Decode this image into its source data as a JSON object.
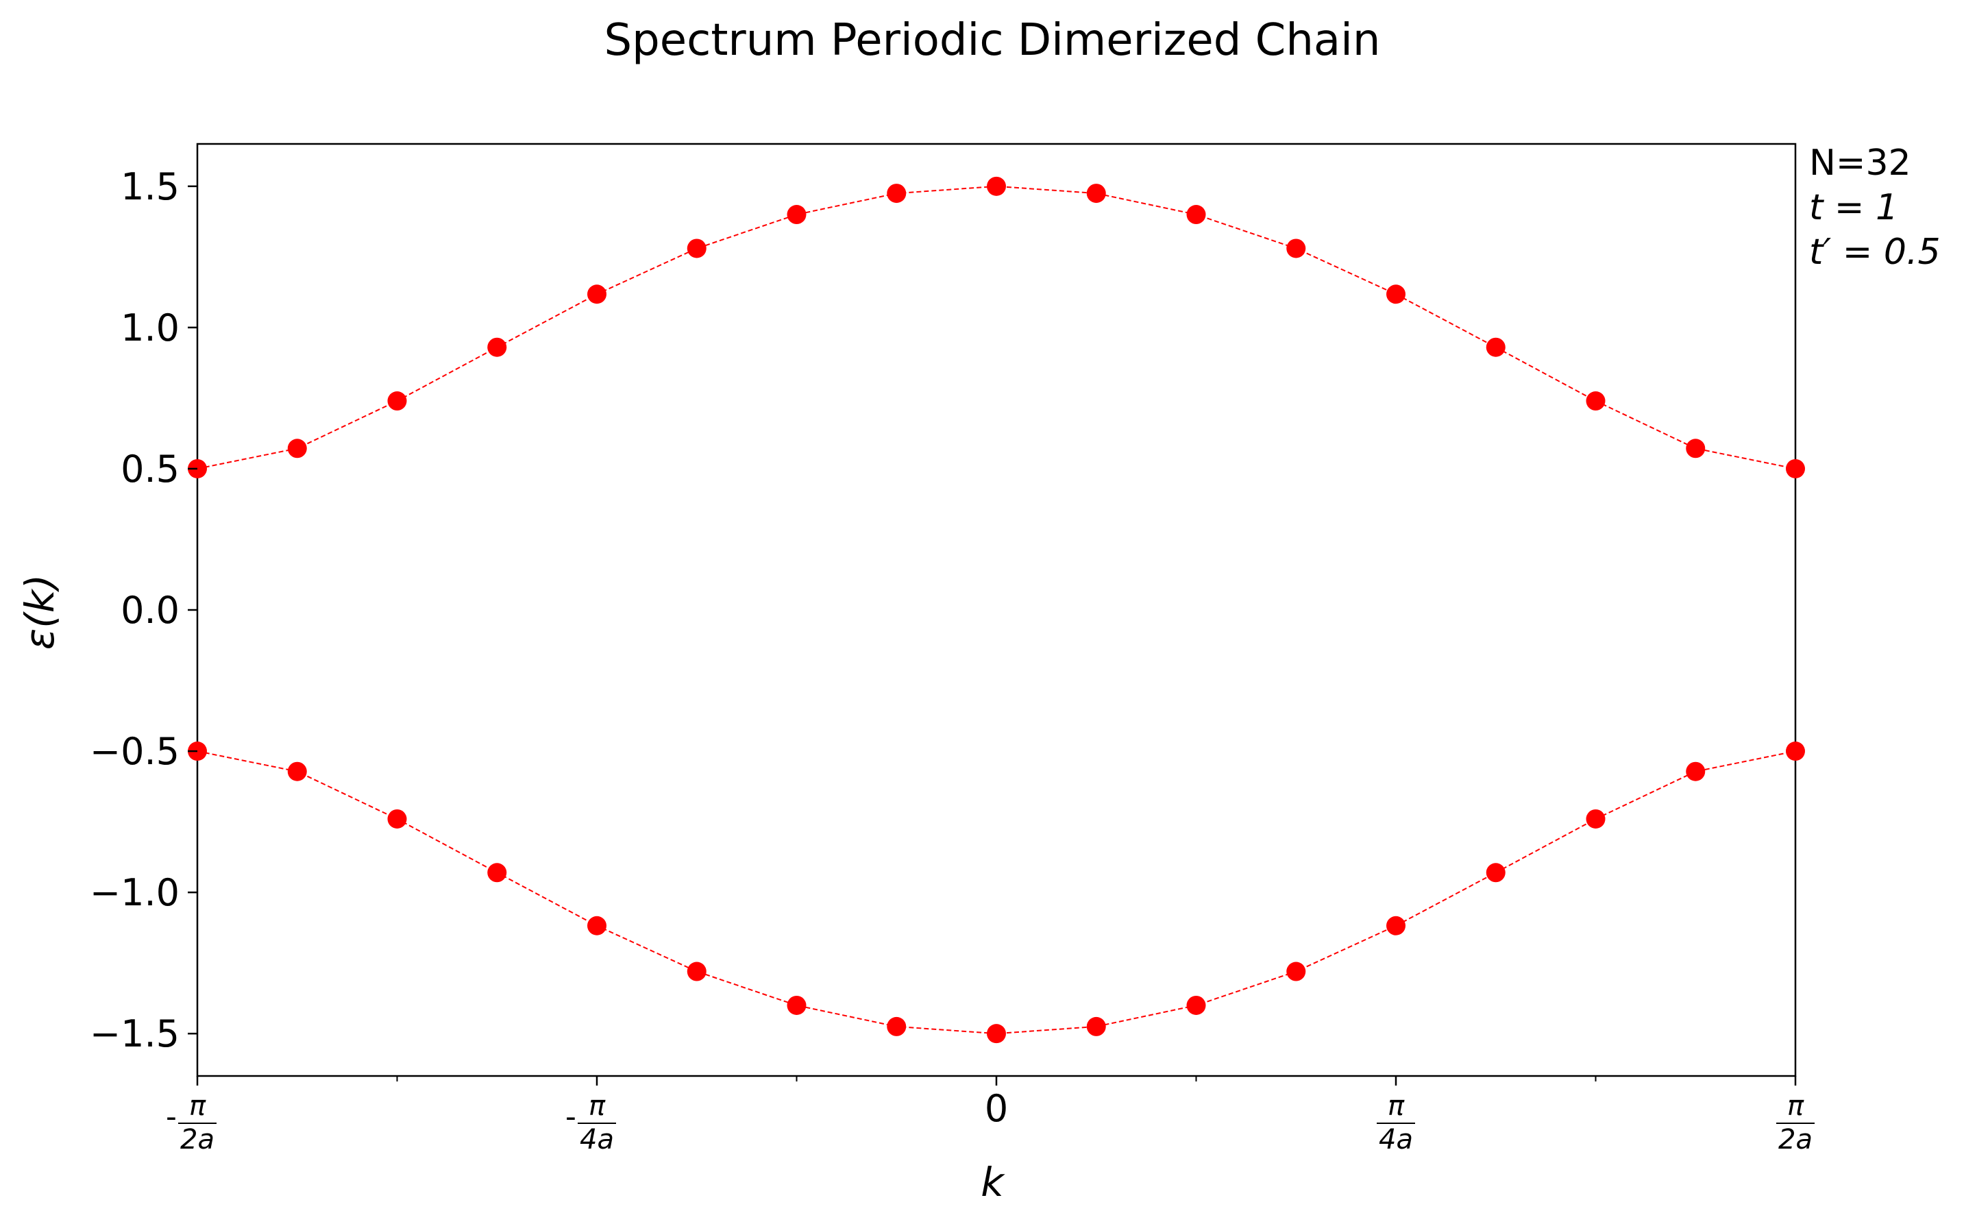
{
  "chart_data": {
    "type": "scatter",
    "title": "Spectrum Periodic Dimerized Chain",
    "xlabel": "k",
    "ylabel": "ε(k)",
    "xlim": [
      -0.5,
      0.5
    ],
    "ylim": [
      -1.65,
      1.65
    ],
    "grid": false,
    "marker_color": "#ff0000",
    "line_style": "dashed",
    "x_unit": "π/a",
    "x_ticks": [
      {
        "value": -0.5,
        "sign": "-",
        "num": "π",
        "den": "2a"
      },
      {
        "value": -0.25,
        "sign": "-",
        "num": "π",
        "den": "4a"
      },
      {
        "value": 0,
        "sign": "",
        "num": "",
        "den": "",
        "plain": "0"
      },
      {
        "value": 0.25,
        "sign": "",
        "num": "π",
        "den": "4a"
      },
      {
        "value": 0.5,
        "sign": "",
        "num": "π",
        "den": "2a"
      }
    ],
    "x_minor_ticks": [
      -0.375,
      -0.125,
      0.125,
      0.375
    ],
    "y_ticks": [
      {
        "value": 1.5,
        "label": "1.5"
      },
      {
        "value": 1.0,
        "label": "1.0"
      },
      {
        "value": 0.5,
        "label": "0.5"
      },
      {
        "value": 0.0,
        "label": "0.0"
      },
      {
        "value": -0.5,
        "label": "−0.5"
      },
      {
        "value": -1.0,
        "label": "−1.0"
      },
      {
        "value": -1.5,
        "label": "−1.5"
      }
    ],
    "x": [
      -0.5,
      -0.4375,
      -0.375,
      -0.3125,
      -0.25,
      -0.1875,
      -0.125,
      -0.0625,
      0,
      0.0625,
      0.125,
      0.1875,
      0.25,
      0.3125,
      0.375,
      0.4375,
      0.5
    ],
    "series": [
      {
        "values": [
          0.5,
          0.572,
          0.74,
          0.93,
          1.118,
          1.28,
          1.4,
          1.475,
          1.5,
          1.475,
          1.4,
          1.28,
          1.118,
          0.93,
          0.74,
          0.572,
          0.5
        ]
      },
      {
        "values": [
          -0.5,
          -0.572,
          -0.74,
          -0.93,
          -1.118,
          -1.28,
          -1.4,
          -1.475,
          -1.5,
          -1.475,
          -1.4,
          -1.28,
          -1.118,
          -0.93,
          -0.74,
          -0.572,
          -0.5
        ]
      }
    ],
    "annotations": [
      "N=32",
      "t = 1",
      "t′ = 0.5"
    ]
  }
}
